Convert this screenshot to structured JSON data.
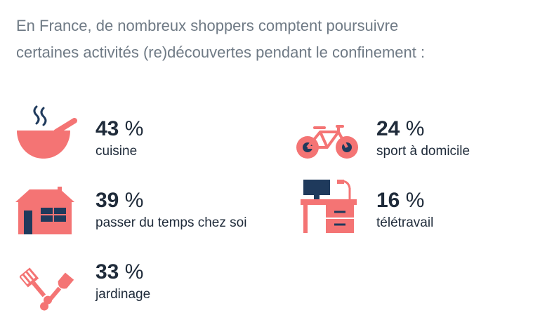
{
  "intro": {
    "line1": "En France, de nombreux shoppers comptent poursuivre",
    "line2": "certaines activités (re)découvertes pendant le confinement :"
  },
  "colors": {
    "accent": "#f47474",
    "navy": "#1f3a5c",
    "text": "#1f2b3a",
    "intro": "#6f7a85"
  },
  "stats": [
    {
      "icon": "cooking-bowl-icon",
      "value": "43",
      "unit": "%",
      "label": "cuisine"
    },
    {
      "icon": "bicycle-icon",
      "value": "24",
      "unit": "%",
      "label": "sport à domicile"
    },
    {
      "icon": "house-icon",
      "value": "39",
      "unit": "%",
      "label": "passer du temps chez soi"
    },
    {
      "icon": "desk-computer-icon",
      "value": "16",
      "unit": "%",
      "label": "télétravail"
    },
    {
      "icon": "gardening-tools-icon",
      "value": "33",
      "unit": "%",
      "label": "jardinage"
    }
  ]
}
